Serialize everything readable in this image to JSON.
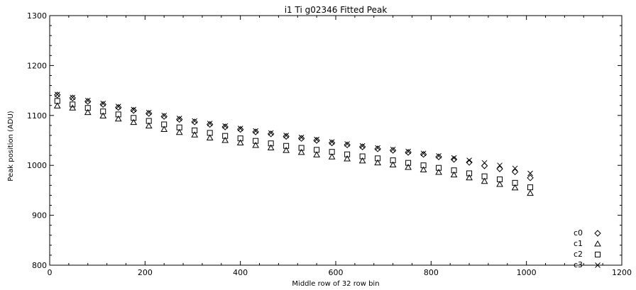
{
  "chart_data": {
    "type": "scatter",
    "title": "i1 Ti g02346 Fitted Peak",
    "xlabel": "Middle row of 32 row bin",
    "ylabel": "Peak position (ADU)",
    "xlim": [
      0,
      1200
    ],
    "ylim": [
      800,
      1300
    ],
    "xticks": [
      "0",
      "200",
      "400",
      "600",
      "800",
      "1000",
      "1200"
    ],
    "yticks": [
      "800",
      "900",
      "1000",
      "1100",
      "1200",
      "1300"
    ],
    "grid": false,
    "legend_position": "bottom-right",
    "x": [
      16,
      48,
      80,
      112,
      144,
      176,
      208,
      240,
      272,
      304,
      336,
      368,
      400,
      432,
      464,
      496,
      528,
      560,
      592,
      624,
      656,
      688,
      720,
      752,
      784,
      816,
      848,
      880,
      912,
      944,
      976,
      1008
    ],
    "series": [
      {
        "name": "c0",
        "marker": "diamond",
        "values": [
          1141,
          1135,
          1128,
          1122,
          1116,
          1110,
          1104,
          1098,
          1092,
          1087,
          1082,
          1077,
          1072,
          1067,
          1063,
          1058,
          1054,
          1050,
          1045,
          1041,
          1037,
          1033,
          1030,
          1026,
          1022,
          1017,
          1012,
          1006,
          999,
          993,
          987,
          975
        ]
      },
      {
        "name": "c1",
        "marker": "triangle",
        "values": [
          1119,
          1115,
          1106,
          1099,
          1093,
          1086,
          1079,
          1072,
          1066,
          1061,
          1055,
          1050,
          1045,
          1040,
          1035,
          1030,
          1026,
          1021,
          1017,
          1013,
          1009,
          1005,
          1001,
          996,
          991,
          986,
          981,
          975,
          968,
          962,
          955,
          944
        ]
      },
      {
        "name": "c2",
        "marker": "square",
        "values": [
          1129,
          1122,
          1115,
          1108,
          1102,
          1095,
          1089,
          1082,
          1076,
          1070,
          1065,
          1059,
          1054,
          1049,
          1044,
          1039,
          1035,
          1031,
          1027,
          1022,
          1018,
          1014,
          1010,
          1005,
          1000,
          995,
          990,
          984,
          978,
          972,
          965,
          956
        ]
      },
      {
        "name": "c3",
        "marker": "x",
        "values": [
          1142,
          1136,
          1130,
          1124,
          1118,
          1112,
          1106,
          1100,
          1094,
          1089,
          1084,
          1079,
          1074,
          1069,
          1065,
          1060,
          1056,
          1052,
          1047,
          1043,
          1039,
          1035,
          1032,
          1028,
          1024,
          1019,
          1015,
          1010,
          1005,
          1000,
          994,
          984
        ]
      }
    ]
  }
}
